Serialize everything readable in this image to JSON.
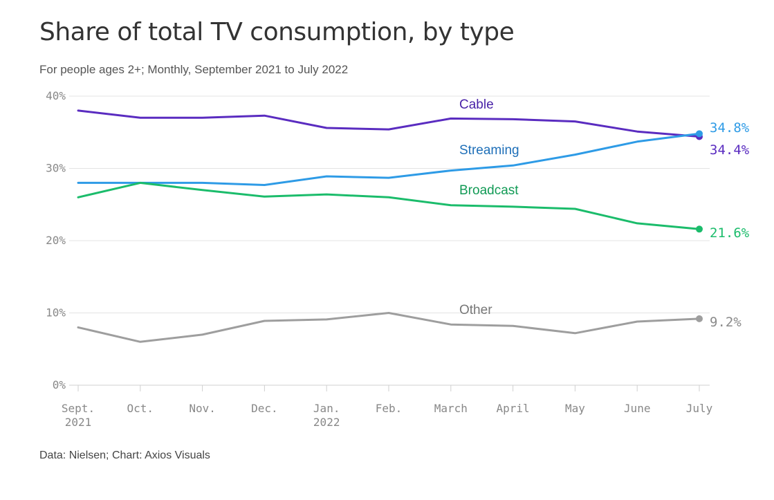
{
  "header": {
    "title": "Share of total TV consumption, by type",
    "subtitle": "For people ages 2+; Monthly, September 2021 to July 2022"
  },
  "footer": {
    "source": "Data: Nielsen; Chart: Axios Visuals"
  },
  "chart_data": {
    "type": "line",
    "title": "Share of total TV consumption, by type",
    "subtitle": "For people ages 2+; Monthly, September 2021 to July 2022",
    "xlabel": "",
    "ylabel": "",
    "categories": [
      [
        "Sept.",
        "2021"
      ],
      [
        "Oct."
      ],
      [
        "Nov."
      ],
      [
        "Dec."
      ],
      [
        "Jan.",
        "2022"
      ],
      [
        "Feb."
      ],
      [
        "March"
      ],
      [
        "April"
      ],
      [
        "May"
      ],
      [
        "June"
      ],
      [
        "July"
      ]
    ],
    "y_ticks": [
      0,
      10,
      20,
      30,
      40
    ],
    "y_tick_labels": [
      "0%",
      "10%",
      "20%",
      "30%",
      "40%"
    ],
    "ylim": [
      0,
      40
    ],
    "grid": true,
    "legend": "direct labels",
    "series": [
      {
        "name": "Cable",
        "color": "#5A2CC0",
        "label_color": "#4A23A8",
        "end_label": "34.4%",
        "values": [
          38.0,
          37.0,
          37.0,
          37.3,
          35.6,
          35.4,
          36.9,
          36.8,
          36.5,
          35.1,
          34.4
        ]
      },
      {
        "name": "Streaming",
        "color": "#2E9BE6",
        "label_color": "#1E6FB8",
        "end_label": "34.8%",
        "values": [
          28.0,
          28.0,
          28.0,
          27.7,
          28.9,
          28.7,
          29.7,
          30.4,
          31.9,
          33.7,
          34.8
        ]
      },
      {
        "name": "Broadcast",
        "color": "#1BBC6B",
        "label_color": "#119A55",
        "end_label": "21.6%",
        "values": [
          26.0,
          28.0,
          27.0,
          26.1,
          26.4,
          26.0,
          24.9,
          24.7,
          24.4,
          22.4,
          21.6
        ]
      },
      {
        "name": "Other",
        "color": "#9E9E9E",
        "label_color": "#777777",
        "end_label": "9.2%",
        "values": [
          8.0,
          6.0,
          7.0,
          8.9,
          9.1,
          10.0,
          8.4,
          8.2,
          7.2,
          8.8,
          9.2
        ]
      }
    ]
  }
}
